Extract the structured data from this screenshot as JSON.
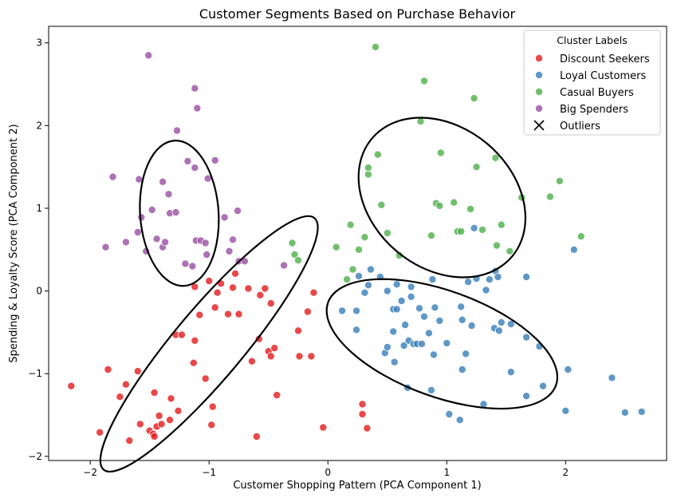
{
  "chart_data": {
    "type": "scatter",
    "title": "Customer Segments Based on Purchase Behavior",
    "xlabel": "Customer Shopping Pattern (PCA Component 1)",
    "ylabel": "Spending & Loyalty Score (PCA Component 2)",
    "xlim": [
      -2.35,
      2.85
    ],
    "ylim": [
      -2.05,
      3.2
    ],
    "xticks": [
      -2,
      -1,
      0,
      1,
      2
    ],
    "yticks": [
      -2,
      -1,
      0,
      1,
      2,
      3
    ],
    "grid": false,
    "legend": {
      "title": "Cluster Labels",
      "placement": "top-right",
      "entries": [
        "Discount Seekers",
        "Loyal Customers",
        "Casual Buyers",
        "Big Spenders",
        "Outliers"
      ],
      "outlier_marker": "x"
    },
    "series": [
      {
        "name": "Discount Seekers",
        "color": "#e41a1c",
        "points": [
          [
            -2.16,
            -1.15
          ],
          [
            -1.92,
            -1.71
          ],
          [
            -1.85,
            -0.95
          ],
          [
            -1.75,
            -1.28
          ],
          [
            -1.7,
            -1.13
          ],
          [
            -1.67,
            -1.81
          ],
          [
            -1.6,
            -0.97
          ],
          [
            -1.58,
            -1.61
          ],
          [
            -1.5,
            -1.69
          ],
          [
            -1.47,
            -1.73
          ],
          [
            -1.46,
            -1.76
          ],
          [
            -1.46,
            -1.23
          ],
          [
            -1.44,
            -1.64
          ],
          [
            -1.42,
            -1.51
          ],
          [
            -1.4,
            -1.61
          ],
          [
            -1.33,
            -1.56
          ],
          [
            -1.32,
            -1.3
          ],
          [
            -1.28,
            -0.53
          ],
          [
            -1.26,
            -1.45
          ],
          [
            -1.23,
            -0.53
          ],
          [
            -1.13,
            -0.87
          ],
          [
            -1.12,
            -0.6
          ],
          [
            -1.12,
            0.05
          ],
          [
            -1.08,
            -0.29
          ],
          [
            -1.03,
            -1.06
          ],
          [
            -1.0,
            0.12
          ],
          [
            -0.98,
            -1.62
          ],
          [
            -0.97,
            -1.4
          ],
          [
            -0.95,
            -0.2
          ],
          [
            -0.93,
            -0.02
          ],
          [
            -0.9,
            0.09
          ],
          [
            -0.84,
            -0.28
          ],
          [
            -0.8,
            0.04
          ],
          [
            -0.78,
            0.21
          ],
          [
            -0.75,
            -0.28
          ],
          [
            -0.67,
            0.03
          ],
          [
            -0.64,
            -0.85
          ],
          [
            -0.6,
            -1.76
          ],
          [
            -0.58,
            -0.58
          ],
          [
            -0.57,
            -0.05
          ],
          [
            -0.53,
            0.03
          ],
          [
            -0.5,
            -0.73
          ],
          [
            -0.48,
            -0.79
          ],
          [
            -0.48,
            -0.15
          ],
          [
            -0.45,
            -0.69
          ],
          [
            -0.43,
            -1.26
          ],
          [
            -0.25,
            -0.48
          ],
          [
            -0.24,
            -0.79
          ],
          [
            -0.17,
            -0.25
          ],
          [
            -0.14,
            -0.79
          ],
          [
            -0.12,
            -0.02
          ],
          [
            -0.04,
            -1.65
          ],
          [
            0.29,
            -1.37
          ],
          [
            0.29,
            -1.49
          ],
          [
            0.33,
            -1.66
          ]
        ]
      },
      {
        "name": "Loyal Customers",
        "color": "#377eb8",
        "points": [
          [
            0.12,
            -0.24
          ],
          [
            0.24,
            -0.24
          ],
          [
            0.24,
            -0.47
          ],
          [
            0.26,
            0.18
          ],
          [
            0.31,
            -0.02
          ],
          [
            0.34,
            0.07
          ],
          [
            0.36,
            0.26
          ],
          [
            0.44,
            0.17
          ],
          [
            0.48,
            -0.75
          ],
          [
            0.5,
            0.0
          ],
          [
            0.5,
            -0.68
          ],
          [
            0.55,
            -0.22
          ],
          [
            0.55,
            -0.49
          ],
          [
            0.56,
            -0.86
          ],
          [
            0.58,
            0.08
          ],
          [
            0.58,
            -0.22
          ],
          [
            0.62,
            -0.12
          ],
          [
            0.64,
            -0.66
          ],
          [
            0.65,
            -0.41
          ],
          [
            0.67,
            -1.17
          ],
          [
            0.68,
            -0.6
          ],
          [
            0.7,
            -0.07
          ],
          [
            0.7,
            0.05
          ],
          [
            0.72,
            -0.64
          ],
          [
            0.75,
            -0.64
          ],
          [
            0.77,
            -0.21
          ],
          [
            0.79,
            -0.64
          ],
          [
            0.81,
            -0.31
          ],
          [
            0.85,
            -0.51
          ],
          [
            0.87,
            -1.2
          ],
          [
            0.88,
            0.14
          ],
          [
            0.89,
            -0.77
          ],
          [
            0.9,
            -0.2
          ],
          [
            0.94,
            -0.36
          ],
          [
            1.0,
            -0.63
          ],
          [
            1.02,
            -1.49
          ],
          [
            1.11,
            -1.56
          ],
          [
            1.12,
            -0.19
          ],
          [
            1.13,
            -0.35
          ],
          [
            1.13,
            -0.95
          ],
          [
            1.16,
            -0.76
          ],
          [
            1.18,
            0.11
          ],
          [
            1.21,
            -0.42
          ],
          [
            1.23,
            0.76
          ],
          [
            1.25,
            0.15
          ],
          [
            1.31,
            -1.37
          ],
          [
            1.33,
            0.01
          ],
          [
            1.36,
            0.14
          ],
          [
            1.4,
            -0.45
          ],
          [
            1.41,
            0.24
          ],
          [
            1.43,
            0.17
          ],
          [
            1.44,
            -0.48
          ],
          [
            1.46,
            -0.38
          ],
          [
            1.54,
            -0.4
          ],
          [
            1.54,
            -0.98
          ],
          [
            1.67,
            0.17
          ],
          [
            1.67,
            -0.56
          ],
          [
            1.67,
            -1.27
          ],
          [
            1.78,
            -0.67
          ],
          [
            1.81,
            -1.15
          ],
          [
            2.0,
            -1.45
          ],
          [
            2.02,
            -0.95
          ],
          [
            2.07,
            0.5
          ],
          [
            2.39,
            -1.05
          ],
          [
            2.5,
            -1.47
          ],
          [
            2.64,
            -1.46
          ]
        ]
      },
      {
        "name": "Casual Buyers",
        "color": "#4daf4a",
        "points": [
          [
            -0.3,
            0.58
          ],
          [
            -0.28,
            0.44
          ],
          [
            -0.25,
            0.37
          ],
          [
            0.07,
            0.53
          ],
          [
            0.16,
            0.14
          ],
          [
            0.19,
            0.8
          ],
          [
            0.21,
            0.26
          ],
          [
            0.26,
            0.5
          ],
          [
            0.31,
            0.65
          ],
          [
            0.34,
            1.41
          ],
          [
            0.34,
            1.49
          ],
          [
            0.4,
            2.95
          ],
          [
            0.42,
            1.65
          ],
          [
            0.45,
            1.04
          ],
          [
            0.5,
            0.7
          ],
          [
            0.6,
            0.43
          ],
          [
            0.78,
            2.05
          ],
          [
            0.81,
            2.54
          ],
          [
            0.87,
            0.67
          ],
          [
            0.91,
            1.06
          ],
          [
            0.94,
            1.03
          ],
          [
            0.95,
            1.67
          ],
          [
            1.06,
            1.07
          ],
          [
            1.09,
            0.72
          ],
          [
            1.12,
            0.72
          ],
          [
            1.2,
            0.99
          ],
          [
            1.23,
            2.33
          ],
          [
            1.25,
            1.5
          ],
          [
            1.3,
            0.74
          ],
          [
            1.41,
            1.61
          ],
          [
            1.42,
            0.55
          ],
          [
            1.46,
            0.8
          ],
          [
            1.53,
            0.48
          ],
          [
            1.63,
            1.13
          ],
          [
            1.87,
            1.14
          ],
          [
            1.95,
            1.33
          ],
          [
            2.13,
            0.66
          ]
        ]
      },
      {
        "name": "Big Spenders",
        "color": "#984ea3",
        "points": [
          [
            -1.87,
            0.53
          ],
          [
            -1.81,
            1.38
          ],
          [
            -1.7,
            0.59
          ],
          [
            -1.6,
            0.71
          ],
          [
            -1.59,
            1.35
          ],
          [
            -1.57,
            0.89
          ],
          [
            -1.53,
            0.48
          ],
          [
            -1.51,
            2.85
          ],
          [
            -1.48,
            0.98
          ],
          [
            -1.44,
            0.63
          ],
          [
            -1.39,
            0.53
          ],
          [
            -1.39,
            1.32
          ],
          [
            -1.37,
            0.59
          ],
          [
            -1.34,
            1.17
          ],
          [
            -1.33,
            0.94
          ],
          [
            -1.28,
            0.95
          ],
          [
            -1.27,
            1.94
          ],
          [
            -1.2,
            0.33
          ],
          [
            -1.18,
            1.57
          ],
          [
            -1.14,
            0.3
          ],
          [
            -1.12,
            2.45
          ],
          [
            -1.12,
            1.49
          ],
          [
            -1.11,
            0.61
          ],
          [
            -1.1,
            2.21
          ],
          [
            -1.07,
            0.61
          ],
          [
            -1.03,
            0.58
          ],
          [
            -1.02,
            0.44
          ],
          [
            -1.01,
            1.36
          ],
          [
            -0.95,
            1.58
          ],
          [
            -0.87,
            0.89
          ],
          [
            -0.83,
            0.48
          ],
          [
            -0.8,
            0.62
          ],
          [
            -0.76,
            0.97
          ],
          [
            -0.75,
            0.36
          ],
          [
            -0.7,
            0.36
          ],
          [
            -0.37,
            0.31
          ]
        ]
      }
    ],
    "ellipses": [
      {
        "cluster": "Big Spenders",
        "cx": -1.25,
        "cy": 0.94,
        "rx": 0.33,
        "ry": 0.88,
        "angle_deg": 4
      },
      {
        "cluster": "Casual Buyers",
        "cx": 0.96,
        "cy": 1.13,
        "rx": 0.77,
        "ry": 0.85,
        "angle_deg": -40
      },
      {
        "cluster": "Discount Seekers",
        "cx": -1.0,
        "cy": -0.64,
        "rx": 1.38,
        "ry": 0.42,
        "angle_deg": 50
      },
      {
        "cluster": "Loyal Customers",
        "cx": 0.96,
        "cy": -0.64,
        "rx": 1.02,
        "ry": 0.64,
        "angle_deg": -20
      }
    ]
  }
}
